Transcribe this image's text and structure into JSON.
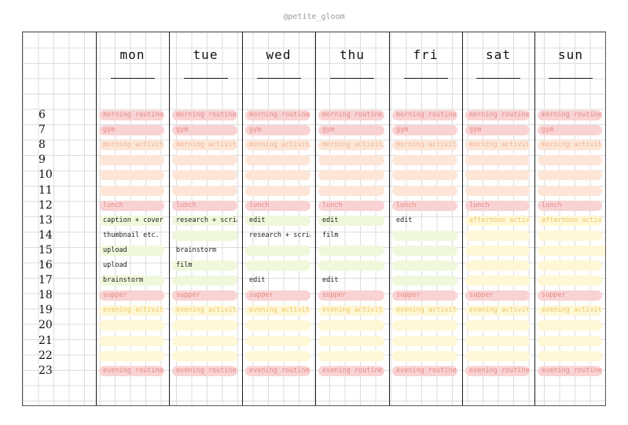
{
  "handle": "@petite_gloom",
  "days": [
    "mon",
    "tue",
    "wed",
    "thu",
    "fri",
    "sat",
    "sun"
  ],
  "hours": [
    "6",
    "7",
    "8",
    "9",
    "10",
    "11",
    "12",
    "13",
    "14",
    "15",
    "16",
    "17",
    "18",
    "19",
    "20",
    "21",
    "22",
    "23"
  ],
  "labels": {
    "morning_routine": "morning routine",
    "gym": "gym",
    "morning_activities": "morning activities",
    "lunch": "lunch",
    "afternoon_activities": "afternoon activities",
    "supper": "supper",
    "evening_activities": "evening activities",
    "evening_routine": "evening routine"
  },
  "tasks": {
    "mon": [
      "caption + cover",
      "thumbnail etc.",
      "upload",
      "upload",
      "brainstorm"
    ],
    "tue": [
      "research + script",
      "brainstorm",
      "film"
    ],
    "wed": [
      "edit",
      "research + script",
      "edit"
    ],
    "thu": [
      "edit",
      "film",
      "edit"
    ],
    "fri": [
      "edit"
    ]
  },
  "colors": {
    "pink": "#f9d3d3",
    "peach": "#fde6d8",
    "yellow": "#fff7d6",
    "green": "#f0f8dc"
  }
}
